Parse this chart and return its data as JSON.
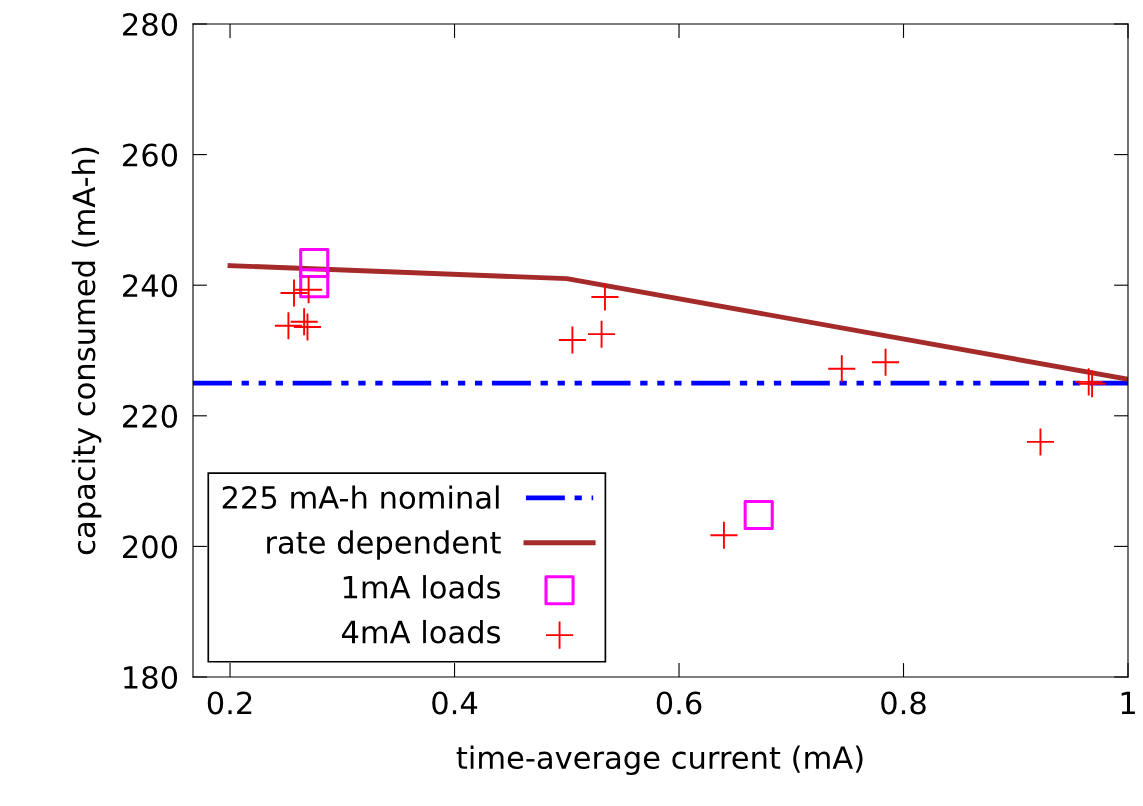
{
  "chart_data": {
    "type": "scatter",
    "xlabel": "time-average current (mA)",
    "ylabel": "capacity consumed (mA-h)",
    "xlim": [
      0.167,
      1
    ],
    "ylim": [
      180,
      280
    ],
    "xticks": [
      0.2,
      0.4,
      0.6,
      0.8,
      1
    ],
    "yticks": [
      180,
      200,
      220,
      240,
      260,
      280
    ],
    "grid": false,
    "legend": "bottom left",
    "series": [
      {
        "name": "225 mA-h nominal",
        "type": "line",
        "color": "#0000ff",
        "line_style": "dashdotdot",
        "marker": "none",
        "x": [
          0.167,
          1
        ],
        "values": [
          225,
          225
        ]
      },
      {
        "name": "rate dependent",
        "type": "line",
        "color": "#a52a2a",
        "line_style": "solid",
        "marker": "none",
        "x": [
          0.2,
          0.5,
          1
        ],
        "values": [
          243,
          241,
          225.6
        ]
      },
      {
        "name": "1mA loads",
        "color": "#ff00ff",
        "marker": "square",
        "x": [
          0.275,
          0.275,
          0.671
        ],
        "values": [
          243.4,
          240.3,
          204.8
        ]
      },
      {
        "name": "4mA loads",
        "color": "#ff0000",
        "marker": "cross",
        "x": [
          0.252,
          0.257,
          0.266,
          0.269,
          0.27,
          0.505,
          0.531,
          0.534,
          0.64,
          0.745,
          0.784,
          0.922,
          0.965,
          0.968
        ],
        "values": [
          233.8,
          238.8,
          234.4,
          233.6,
          239.3,
          231.6,
          232.5,
          238.2,
          201.7,
          227.2,
          228.2,
          216.0,
          225.2,
          224.9
        ]
      }
    ]
  }
}
